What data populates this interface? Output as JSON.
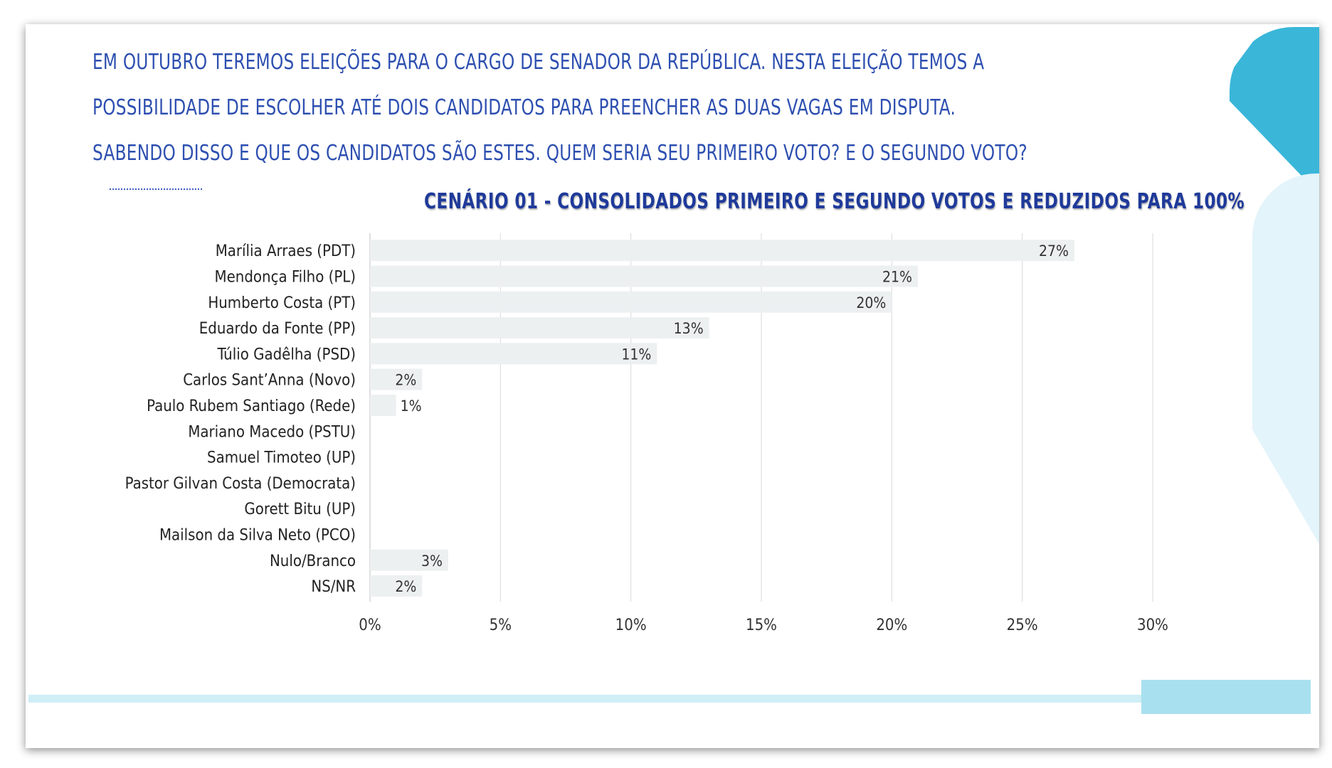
{
  "question": {
    "lines": [
      "EM OUTUBRO TEREMOS ELEIÇÕES PARA O CARGO DE SENADOR DA REPÚBLICA. NESTA ELEIÇÃO TEMOS A",
      "POSSIBILIDADE DE ESCOLHER ATÉ DOIS CANDIDATOS PARA PREENCHER AS DUAS VAGAS EM DISPUTA.",
      "SABENDO DISSO E QUE OS CANDIDATOS SÃO ESTES. QUEM SERIA SEU PRIMEIRO VOTO? E O SEGUNDO VOTO?"
    ]
  },
  "colors": {
    "text_blue": "#2d4fb0",
    "title_blue": "#1f3a9a",
    "bar": "#edf0f1",
    "grid": "#d9d9d9",
    "accent_dark": "#3ab6d9",
    "accent_light": "#e3f4fa"
  },
  "chart_data": {
    "type": "bar",
    "orientation": "horizontal",
    "title": "CENÁRIO 01 - CONSOLIDADOS PRIMEIRO E SEGUNDO VOTOS E REDUZIDOS PARA 100%",
    "categories": [
      "Marília Arraes (PDT)",
      "Mendonça Filho (PL)",
      "Humberto Costa (PT)",
      "Eduardo da Fonte (PP)",
      "Túlio Gadêlha (PSD)",
      "Carlos Sant’Anna (Novo)",
      "Paulo Rubem Santiago (Rede)",
      "Mariano Macedo (PSTU)",
      "Samuel Timoteo (UP)",
      "Pastor Gilvan Costa (Democrata)",
      "Gorett Bitu (UP)",
      "Mailson da Silva Neto (PCO)",
      "Nulo/Branco",
      "NS/NR"
    ],
    "values": [
      27,
      21,
      20,
      13,
      11,
      2,
      1,
      0,
      0,
      0,
      0,
      0,
      3,
      2
    ],
    "value_labels": [
      "27%",
      "21%",
      "20%",
      "13%",
      "11%",
      "2%",
      "1%",
      "",
      "",
      "",
      "",
      "",
      "3%",
      "2%"
    ],
    "xlim": [
      0,
      30
    ],
    "xticks": [
      0,
      5,
      10,
      15,
      20,
      25,
      30
    ],
    "xtick_labels": [
      "0%",
      "5%",
      "10%",
      "15%",
      "20%",
      "25%",
      "30%"
    ],
    "grid": true,
    "legend": "none"
  }
}
